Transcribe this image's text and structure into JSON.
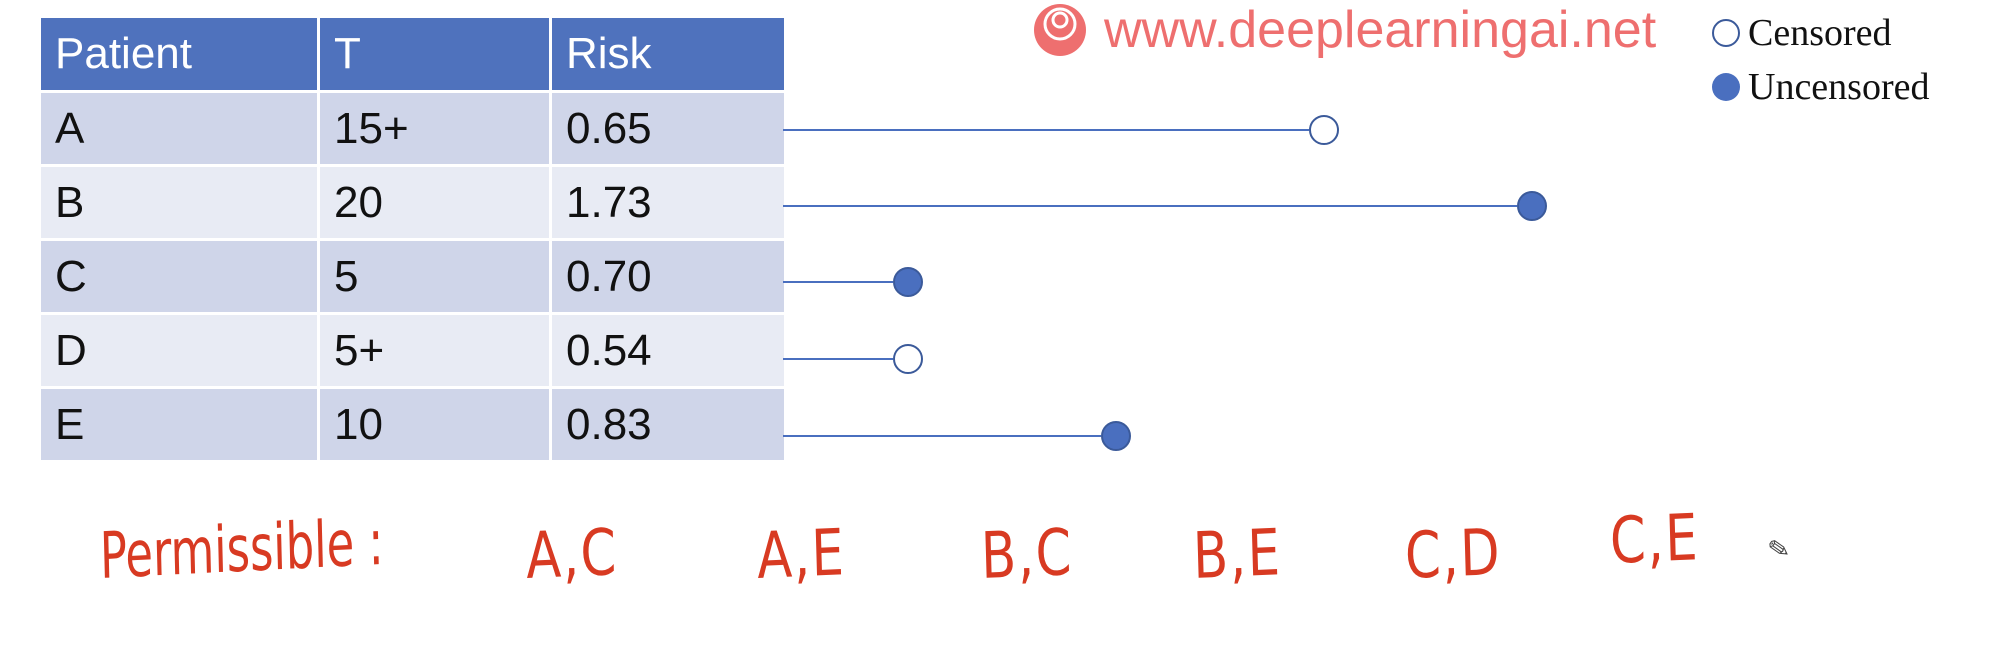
{
  "table": {
    "headers": [
      "Patient",
      "T",
      "Risk"
    ],
    "rows": [
      {
        "patient": "A",
        "t": "15+",
        "risk": "0.65",
        "censored": true,
        "time": 15
      },
      {
        "patient": "B",
        "t": "20",
        "risk": "1.73",
        "censored": false,
        "time": 20
      },
      {
        "patient": "C",
        "t": "5",
        "risk": "0.70",
        "censored": false,
        "time": 5
      },
      {
        "patient": "D",
        "t": "5+",
        "risk": "0.54",
        "censored": true,
        "time": 5
      },
      {
        "patient": "E",
        "t": "10",
        "risk": "0.83",
        "censored": false,
        "time": 10
      }
    ]
  },
  "legend": {
    "censored": "Censored",
    "uncensored": "Uncensored"
  },
  "watermark": "www.deeplearningai.net",
  "annotation": {
    "label": "Permissible :",
    "pairs": [
      "A,C",
      "A,E",
      "B,C",
      "B,E",
      "C,D",
      "C,E"
    ]
  },
  "colors": {
    "header": "#4f72bd",
    "marker": "#4a6fbf",
    "ink": "#d83a22",
    "watermark": "#ee6f6f"
  },
  "icons": {
    "pencil": "pencil-icon",
    "logo": "watermark-logo-icon"
  }
}
